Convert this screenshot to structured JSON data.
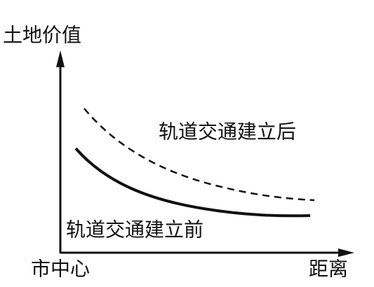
{
  "axes": {
    "y_label": "土地价值",
    "origin_label": "市中心",
    "x_label": "距离"
  },
  "curves": [
    {
      "label": "轨道交通建立后"
    },
    {
      "label": "轨道交通建立前"
    }
  ]
}
